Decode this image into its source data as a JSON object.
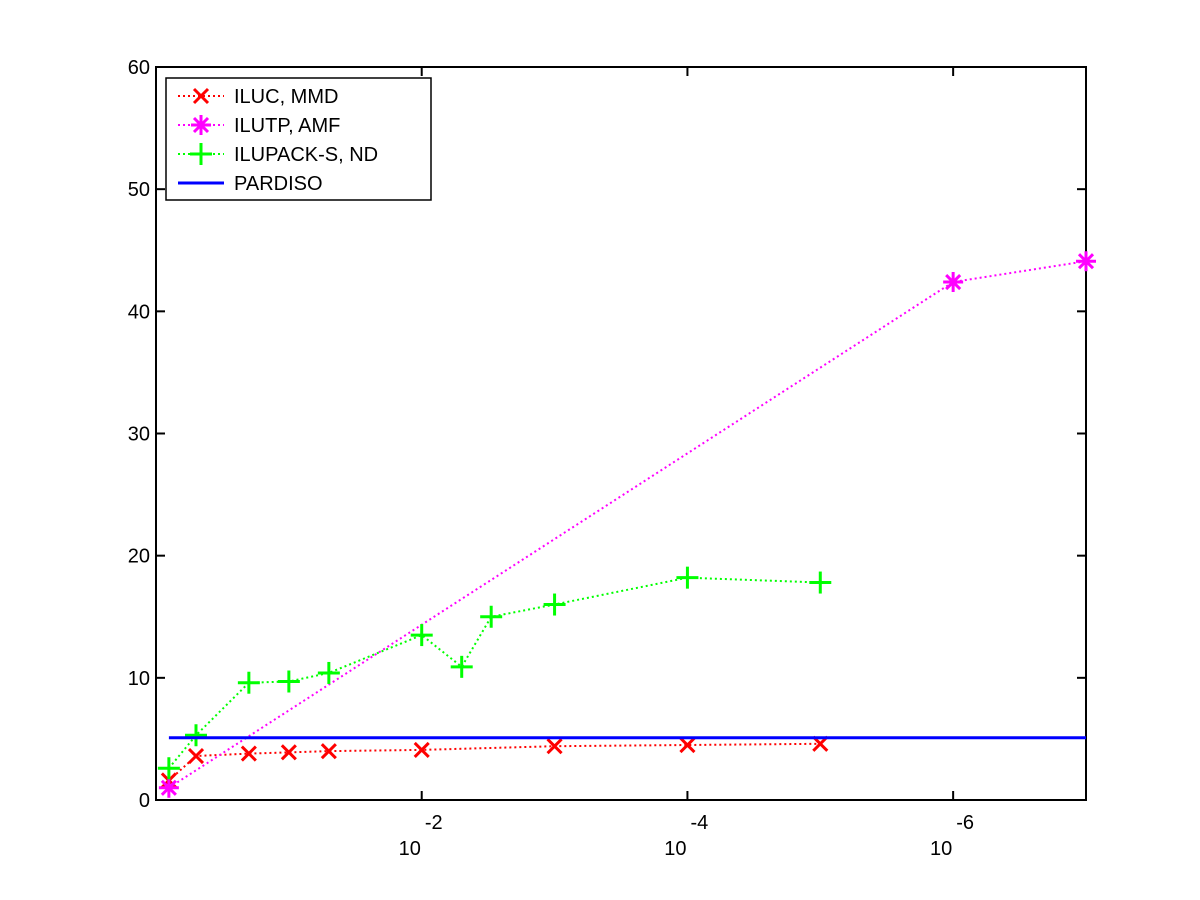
{
  "chart_data": {
    "type": "line",
    "title": "",
    "xlabel": "",
    "ylabel": "",
    "x_scale": "log-reversed",
    "xlim": [
      1.0,
      1e-07
    ],
    "ylim": [
      0,
      60
    ],
    "grid": false,
    "legend_position": "top-left",
    "y_ticks": [
      0,
      10,
      20,
      30,
      40,
      50,
      60
    ],
    "y_tick_labels": [
      "0",
      "10",
      "20",
      "30",
      "40",
      "50",
      "60"
    ],
    "x_ticks": [
      {
        "value": 0.01,
        "base": "10",
        "exponent": "-2"
      },
      {
        "value": 0.0001,
        "base": "10",
        "exponent": "-4"
      },
      {
        "value": 1e-06,
        "base": "10",
        "exponent": "-6"
      }
    ],
    "series": [
      {
        "name": "ILUC, MMD",
        "color": "#ff0000",
        "marker": "x",
        "line_style": "dotted",
        "x": [
          0.8,
          0.5,
          0.2,
          0.1,
          0.05,
          0.01,
          0.001,
          0.0001,
          1e-05
        ],
        "y": [
          1.6,
          3.6,
          3.8,
          3.9,
          4.0,
          4.1,
          4.4,
          4.5,
          4.6
        ]
      },
      {
        "name": "ILUTP, AMF",
        "color": "#ff00ff",
        "marker": "asterisk",
        "line_style": "dotted",
        "x": [
          0.8,
          1e-06,
          1e-07
        ],
        "y": [
          1.0,
          42.4,
          44.1
        ]
      },
      {
        "name": "ILUPACK-S, ND",
        "color": "#00ff00",
        "marker": "plus",
        "line_style": "dotted",
        "x": [
          0.8,
          0.5,
          0.2,
          0.1,
          0.05,
          0.01,
          0.005,
          0.003,
          0.001,
          0.0001,
          1e-05
        ],
        "y": [
          2.6,
          5.3,
          9.6,
          9.7,
          10.4,
          13.5,
          10.9,
          15.0,
          16.0,
          18.2,
          17.8
        ]
      },
      {
        "name": "PARDISO",
        "color": "#0000ff",
        "marker": "none",
        "line_style": "solid",
        "x": [
          0.8,
          1e-07
        ],
        "y": [
          5.1,
          5.1
        ]
      }
    ]
  }
}
